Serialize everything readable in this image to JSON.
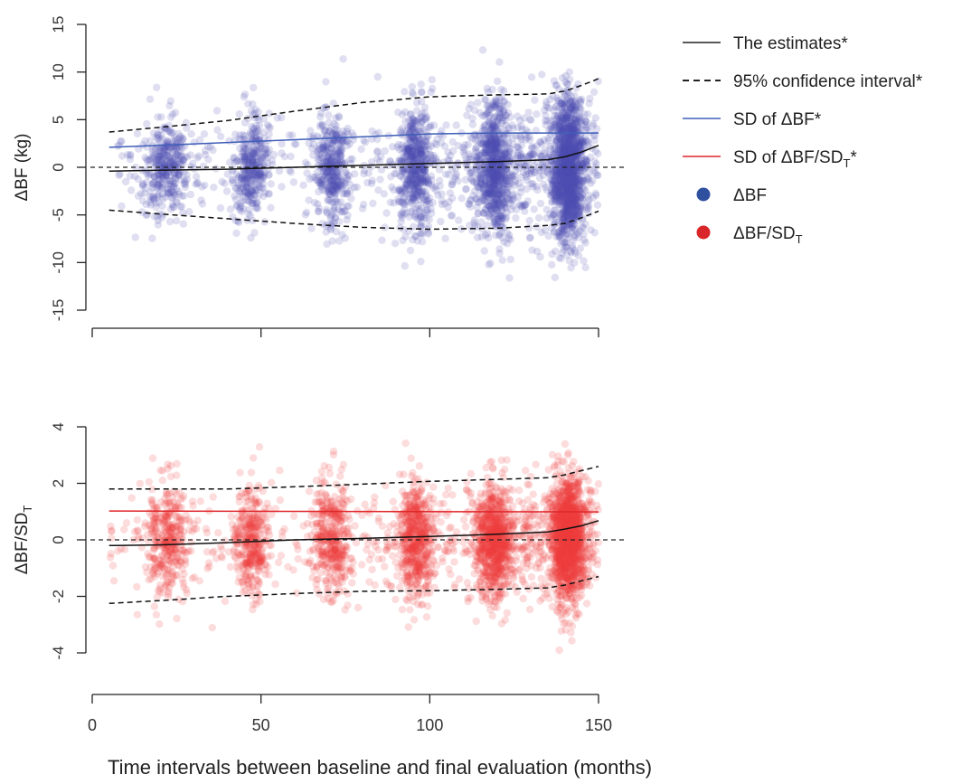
{
  "figure": {
    "xlabel": "Time intervals between baseline and final evaluation (months)"
  },
  "legend": {
    "items": [
      {
        "label": "The estimates*",
        "style": "solid",
        "color": "#222222"
      },
      {
        "label": "95% confidence interval*",
        "style": "dashed",
        "color": "#222222"
      },
      {
        "label": "SD of ΔBF*",
        "style": "solid",
        "color": "#3f5fb8"
      },
      {
        "label": "SD of ΔBF/SD",
        "sub": "T",
        "suffix": "*",
        "style": "solid",
        "color": "#e0262a"
      },
      {
        "label": "ΔBF",
        "style": "dot",
        "color": "#2f4f9f"
      },
      {
        "label": "ΔBF/SD",
        "sub": "T",
        "style": "dot",
        "color": "#d9262b"
      }
    ]
  },
  "chart_data": [
    {
      "type": "scatter",
      "ylabel": "ΔBF (kg)",
      "xlim": [
        0,
        150
      ],
      "ylim": [
        -15,
        15
      ],
      "yticks": [
        "-15",
        "-10",
        "-5",
        "0",
        "5",
        "10",
        "15"
      ],
      "xticks": [
        "",
        "",
        "",
        ""
      ],
      "point_color": "#4b4fb3",
      "clusters": [
        {
          "x": 22,
          "spread": 3.0,
          "n": 380,
          "sd": 2.4,
          "x_lo": 5,
          "x_hi": 30
        },
        {
          "x": 47,
          "spread": 2.6,
          "n": 380,
          "sd": 2.7,
          "x_lo": 30,
          "x_hi": 56
        },
        {
          "x": 71,
          "spread": 2.8,
          "n": 420,
          "sd": 2.9,
          "x_lo": 55,
          "x_hi": 85
        },
        {
          "x": 96,
          "spread": 2.6,
          "n": 600,
          "sd": 3.3,
          "x_lo": 80,
          "x_hi": 108
        },
        {
          "x": 119,
          "spread": 2.8,
          "n": 900,
          "sd": 3.4,
          "x_lo": 104,
          "x_hi": 132
        },
        {
          "x": 141,
          "spread": 2.4,
          "n": 1600,
          "sd": 3.6,
          "x_lo": 126,
          "x_hi": 150
        }
      ],
      "series": [
        {
          "name": "The estimates*",
          "style": "solid",
          "color": "#111111",
          "x": [
            5,
            20,
            40,
            60,
            80,
            100,
            120,
            135,
            140,
            145,
            150
          ],
          "y": [
            -0.4,
            -0.3,
            -0.2,
            0.0,
            0.2,
            0.4,
            0.6,
            0.8,
            1.1,
            1.6,
            2.3
          ]
        },
        {
          "name": "95% confidence interval* (upper)",
          "style": "dashed",
          "color": "#111111",
          "x": [
            5,
            20,
            40,
            60,
            80,
            100,
            120,
            135,
            140,
            145,
            150
          ],
          "y": [
            3.7,
            4.2,
            4.9,
            5.9,
            6.8,
            7.4,
            7.6,
            7.7,
            8.0,
            8.6,
            9.3
          ]
        },
        {
          "name": "95% confidence interval* (lower)",
          "style": "dashed",
          "color": "#111111",
          "x": [
            5,
            20,
            40,
            60,
            80,
            100,
            120,
            135,
            140,
            145,
            150
          ],
          "y": [
            -4.5,
            -4.9,
            -5.4,
            -5.9,
            -6.3,
            -6.5,
            -6.4,
            -6.1,
            -5.9,
            -5.3,
            -4.6
          ]
        },
        {
          "name": "SD of ΔBF*",
          "style": "solid",
          "color": "#3f5fb8",
          "x": [
            5,
            20,
            40,
            60,
            80,
            100,
            120,
            150
          ],
          "y": [
            2.1,
            2.3,
            2.6,
            2.9,
            3.2,
            3.5,
            3.6,
            3.6
          ]
        }
      ],
      "hline": 0
    },
    {
      "type": "scatter",
      "ylabel": "ΔBF/SD",
      "ylabel_sub": "T",
      "xlim": [
        0,
        150
      ],
      "ylim": [
        -5,
        4.5
      ],
      "yticks": [
        "-4",
        "-2",
        "0",
        "2",
        "4"
      ],
      "yticks_values": [
        -4,
        -2,
        0,
        2,
        4
      ],
      "xticks": [
        "0",
        "50",
        "100",
        "150"
      ],
      "xticks_values": [
        0,
        50,
        100,
        150
      ],
      "point_color": "#ef3b3f",
      "clusters": [
        {
          "x": 22,
          "spread": 3.0,
          "n": 380,
          "sd": 0.95,
          "x_lo": 5,
          "x_hi": 30
        },
        {
          "x": 47,
          "spread": 2.6,
          "n": 380,
          "sd": 0.95,
          "x_lo": 30,
          "x_hi": 56
        },
        {
          "x": 71,
          "spread": 2.8,
          "n": 420,
          "sd": 0.95,
          "x_lo": 55,
          "x_hi": 85
        },
        {
          "x": 96,
          "spread": 2.6,
          "n": 600,
          "sd": 1.0,
          "x_lo": 80,
          "x_hi": 108
        },
        {
          "x": 119,
          "spread": 2.8,
          "n": 900,
          "sd": 1.0,
          "x_lo": 104,
          "x_hi": 132
        },
        {
          "x": 141,
          "spread": 2.4,
          "n": 1600,
          "sd": 1.05,
          "x_lo": 126,
          "x_hi": 150
        }
      ],
      "series": [
        {
          "name": "The estimates*",
          "style": "solid",
          "color": "#111111",
          "x": [
            5,
            20,
            40,
            60,
            80,
            100,
            120,
            135,
            140,
            145,
            150
          ],
          "y": [
            -0.2,
            -0.18,
            -0.1,
            0.0,
            0.05,
            0.12,
            0.2,
            0.28,
            0.38,
            0.5,
            0.68
          ]
        },
        {
          "name": "95% confidence interval* (upper)",
          "style": "dashed",
          "color": "#111111",
          "x": [
            5,
            20,
            40,
            60,
            80,
            100,
            120,
            135,
            140,
            145,
            150
          ],
          "y": [
            1.8,
            1.8,
            1.8,
            1.88,
            1.97,
            2.07,
            2.14,
            2.2,
            2.3,
            2.45,
            2.6
          ]
        },
        {
          "name": "95% confidence interval* (lower)",
          "style": "dashed",
          "color": "#111111",
          "x": [
            5,
            20,
            40,
            60,
            80,
            100,
            120,
            135,
            140,
            145,
            150
          ],
          "y": [
            -2.25,
            -2.15,
            -2.0,
            -1.9,
            -1.82,
            -1.8,
            -1.75,
            -1.7,
            -1.6,
            -1.45,
            -1.3
          ]
        },
        {
          "name": "SD of ΔBF/SD_T*",
          "style": "solid",
          "color": "#e0262a",
          "x": [
            5,
            150
          ],
          "y": [
            1.02,
            0.99
          ]
        }
      ],
      "hline": 0
    }
  ]
}
